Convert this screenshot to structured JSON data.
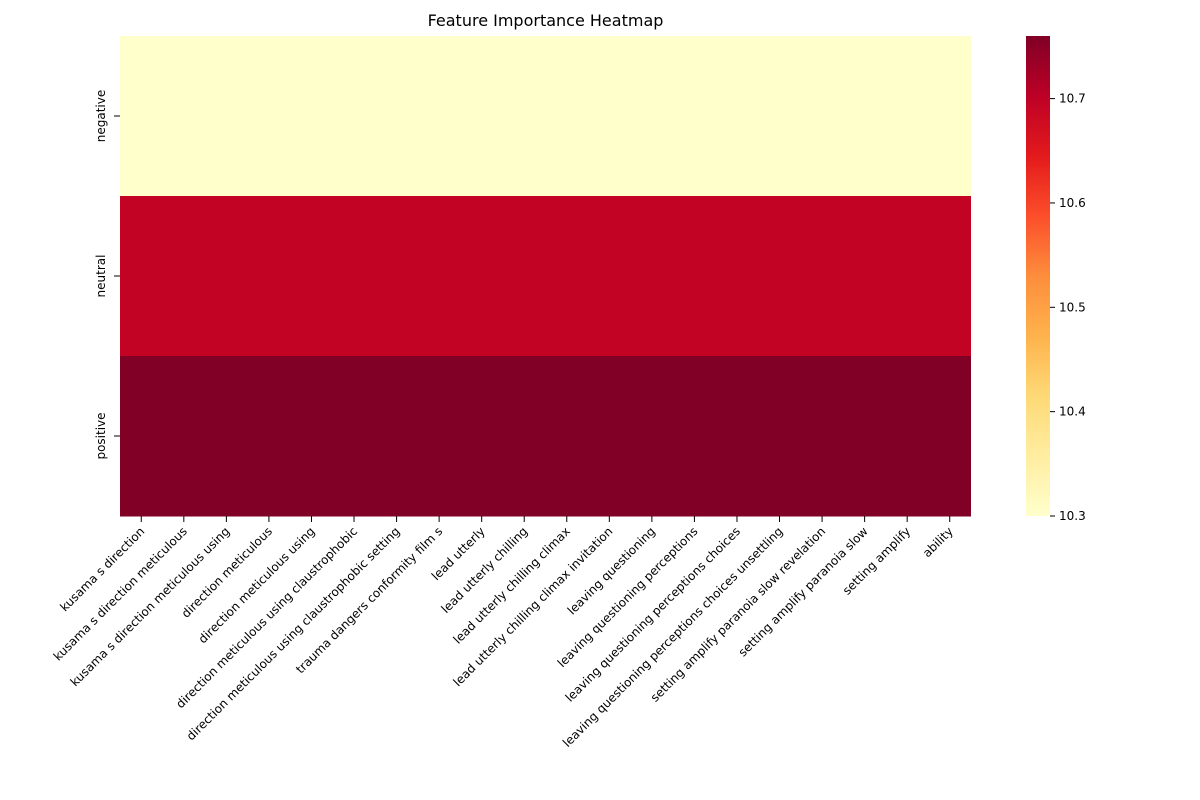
{
  "chart_data": {
    "type": "heatmap",
    "title": "Feature Importance Heatmap",
    "xlabel": "",
    "ylabel": "",
    "rows": [
      "negative",
      "neutral",
      "positive"
    ],
    "columns": [
      "kusama s direction",
      "kusama s direction meticulous",
      "kusama s direction meticulous using",
      "direction meticulous",
      "direction meticulous using",
      "direction meticulous using claustrophobic",
      "direction meticulous using claustrophobic setting",
      "trauma dangers conformity film s",
      "lead utterly",
      "lead utterly chilling",
      "lead utterly chilling climax",
      "lead utterly chilling climax invitation",
      "leaving questioning",
      "leaving questioning perceptions",
      "leaving questioning perceptions choices",
      "leaving questioning perceptions choices unsettling",
      "setting amplify paranoia slow revelation",
      "setting amplify paranoia slow",
      "setting amplify",
      "ability"
    ],
    "row_values": [
      10.3,
      10.68,
      10.76
    ],
    "colorbar": {
      "colormap": "YlOrRd",
      "vmin": 10.3,
      "vmax": 10.76,
      "ticks": [
        "10.3",
        "10.4",
        "10.5",
        "10.6",
        "10.7"
      ]
    },
    "colors": {
      "negative": "#ffffcc",
      "neutral": "#c20324",
      "positive": "#800026"
    },
    "grid": false,
    "legend": "colorbar-right"
  }
}
